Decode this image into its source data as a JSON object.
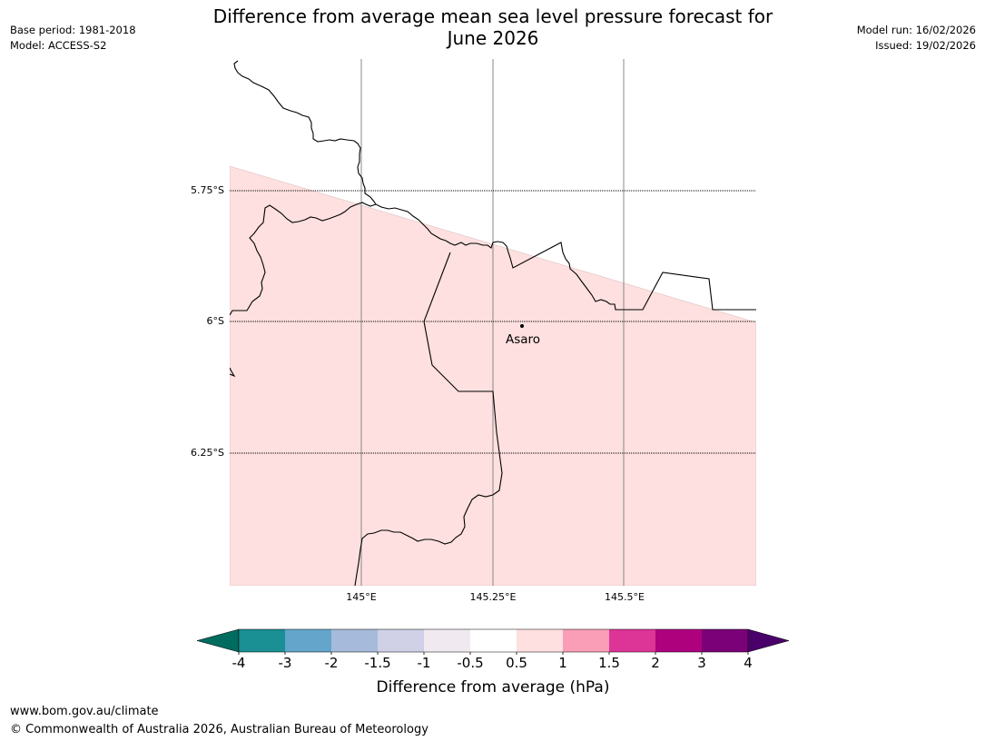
{
  "title": {
    "line1": "Difference from average mean sea level pressure forecast for",
    "line2": "June 2026"
  },
  "meta_left": {
    "base_period": "Base period: 1981-2018",
    "model": "Model: ACCESS-S2"
  },
  "meta_right": {
    "model_run": "Model run: 16/02/2026",
    "issued": "Issued: 19/02/2026"
  },
  "map": {
    "place": "Asaro",
    "lat_ticks": [
      "5.75°S",
      "6°S",
      "6.25°S"
    ],
    "lon_ticks": [
      "145°E",
      "145.25°E",
      "145.5°E"
    ],
    "extent": {
      "lon_min": 144.75,
      "lon_max": 145.75,
      "lat_north": -5.5,
      "lat_south": -6.5
    },
    "anomaly_band": "0.5 to 1"
  },
  "colorbar": {
    "ticks": [
      "-4",
      "-3",
      "-2",
      "-1.5",
      "-1",
      "-0.5",
      "0.5",
      "1",
      "1.5",
      "2",
      "3",
      "4"
    ],
    "colors": [
      "#1a8f94",
      "#64a5cc",
      "#a6bbdb",
      "#d0d0e6",
      "#f0eaf0",
      "#ffffff",
      "#fde0df",
      "#f99eb6",
      "#dd3497",
      "#ae017e",
      "#7a0177"
    ],
    "under_color": "#006b5f",
    "over_color": "#49006a",
    "label": "Difference from average (hPa)"
  },
  "footer": {
    "url": "www.bom.gov.au/climate",
    "copyright": "© Commonwealth of Australia 2026, Australian Bureau of Meteorology"
  }
}
